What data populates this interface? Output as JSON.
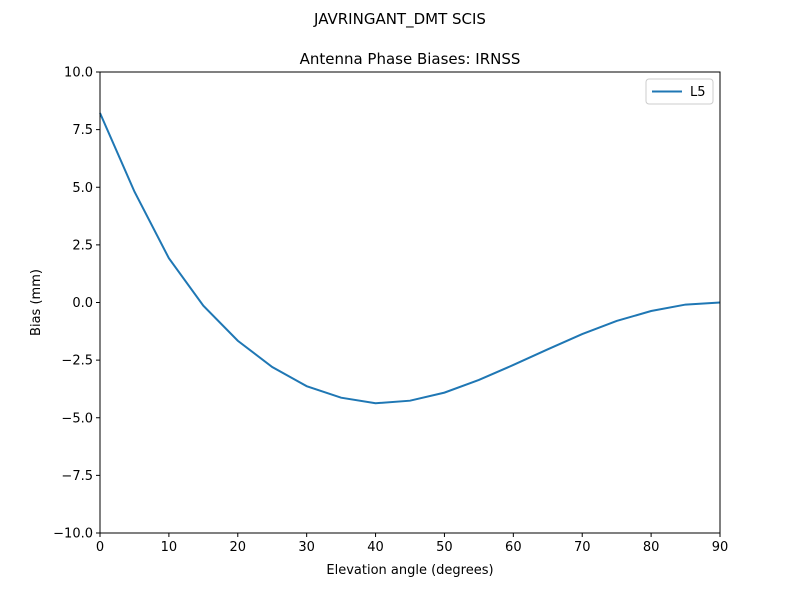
{
  "chart_data": {
    "type": "line",
    "suptitle": "JAVRINGANT_DMT  SCIS",
    "title": "Antenna Phase Biases: IRNSS",
    "xlabel": "Elevation angle (degrees)",
    "ylabel": "Bias (mm)",
    "xlim": [
      0,
      90
    ],
    "ylim": [
      -10,
      10
    ],
    "xticks": [
      0,
      10,
      20,
      30,
      40,
      50,
      60,
      70,
      80,
      90
    ],
    "yticks": [
      -10,
      -7.5,
      -5,
      -2.5,
      0,
      2.5,
      5,
      7.5,
      10
    ],
    "xtick_labels": [
      "0",
      "10",
      "20",
      "30",
      "40",
      "50",
      "60",
      "70",
      "80",
      "90"
    ],
    "ytick_labels": [
      "−10.0",
      "−7.5",
      "−5.0",
      "−2.5",
      "0.0",
      "2.5",
      "5.0",
      "7.5",
      "10.0"
    ],
    "grid": false,
    "legend_placement": "top-right",
    "series": [
      {
        "name": "L5",
        "color": "#1f77b4",
        "x": [
          0,
          5,
          10,
          15,
          20,
          25,
          30,
          35,
          40,
          45,
          50,
          55,
          60,
          65,
          70,
          75,
          80,
          85,
          90
        ],
        "y": [
          8.22,
          4.81,
          1.92,
          -0.14,
          -1.66,
          -2.8,
          -3.63,
          -4.13,
          -4.37,
          -4.26,
          -3.91,
          -3.36,
          -2.71,
          -2.03,
          -1.37,
          -0.8,
          -0.37,
          -0.09,
          0.0
        ]
      }
    ]
  }
}
